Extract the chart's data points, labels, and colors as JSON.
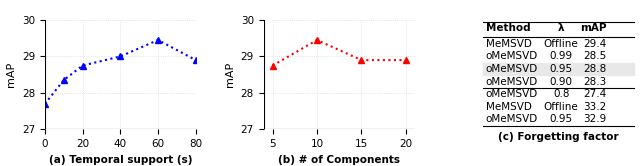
{
  "plot1": {
    "x": [
      0,
      10,
      20,
      40,
      60,
      80
    ],
    "y": [
      27.7,
      28.35,
      28.75,
      29.0,
      29.45,
      28.9
    ],
    "color": "blue",
    "xlabel": "(a) Temporal support (s)",
    "ylabel": "mAP",
    "xlim": [
      0,
      80
    ],
    "ylim": [
      27,
      30
    ],
    "yticks": [
      27,
      28,
      29,
      30
    ],
    "xticks": [
      0,
      20,
      40,
      60,
      80
    ]
  },
  "plot2": {
    "x": [
      5,
      10,
      15,
      20
    ],
    "y": [
      28.75,
      29.45,
      28.9,
      28.9
    ],
    "color": "red",
    "xlabel": "(b) # of Components",
    "ylabel": "mAP",
    "xlim": [
      5,
      20
    ],
    "ylim": [
      27,
      30
    ],
    "yticks": [
      27,
      28,
      29,
      30
    ],
    "xticks": [
      5,
      10,
      15,
      20
    ]
  },
  "table": {
    "col_labels": [
      "Method",
      "λ",
      "mAP"
    ],
    "rows": [
      [
        "MeMSVD",
        "Offline",
        "29.4"
      ],
      [
        "oMeMSVD",
        "0.99",
        "28.5"
      ],
      [
        "oMeMSVD",
        "0.95",
        "28.8"
      ],
      [
        "oMeMSVD",
        "0.90",
        "28.3"
      ],
      [
        "oMeMSVD",
        "0.8",
        "27.4"
      ],
      [
        "MeMSVD",
        "Offline",
        "33.2"
      ],
      [
        "oMeMSVD",
        "0.95",
        "32.9"
      ]
    ],
    "highlight_row": 2,
    "separator_after": 4,
    "caption": "(c) Forgetting factor"
  }
}
